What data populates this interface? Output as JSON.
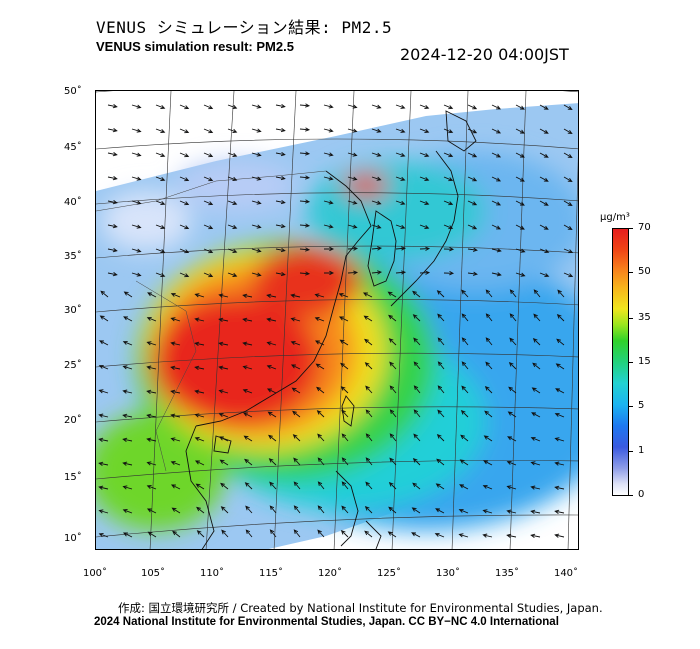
{
  "header": {
    "title_jp": "VENUS シミュレーション結果: PM2.5",
    "title_en": "VENUS simulation result: PM2.5",
    "timestamp": "2024-12-20 04:00JST"
  },
  "map": {
    "y_axis_labels": [
      "50˚",
      "45˚",
      "40˚",
      "35˚",
      "30˚",
      "25˚",
      "20˚",
      "15˚",
      "10˚"
    ],
    "x_axis_labels": [
      "100˚",
      "105˚",
      "110˚",
      "115˚",
      "120˚",
      "125˚",
      "130˚",
      "135˚",
      "140˚"
    ],
    "lat_values": [
      50,
      45,
      40,
      35,
      30,
      25,
      20,
      15,
      10
    ],
    "lon_values": [
      100,
      105,
      110,
      115,
      120,
      125,
      130,
      135,
      140
    ]
  },
  "colorbar": {
    "unit": "µg/m³",
    "tick_labels": [
      "70",
      "50",
      "35",
      "15",
      "5",
      "1",
      "0"
    ],
    "tick_values": [
      70,
      50,
      35,
      15,
      5,
      1,
      0
    ],
    "colors": [
      "#e61e1e",
      "#f77f1c",
      "#f0e61e",
      "#30d22a",
      "#1cb4f0",
      "#3a5ae0",
      "#ffffff"
    ]
  },
  "footer": {
    "credit_jp": "作成: 国立環境研究所 / Created by National Institute for Environmental Studies, Japan.",
    "credit_en": "2024 National Institute for Environmental Studies, Japan. CC BY−NC 4.0 International"
  }
}
